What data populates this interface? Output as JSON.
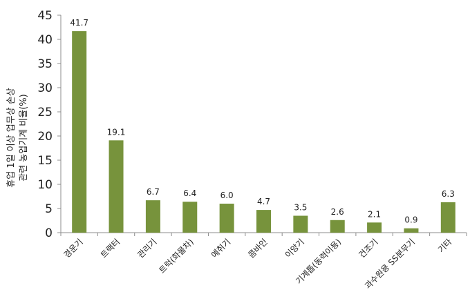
{
  "chart_data": {
    "type": "bar",
    "ylabel_lines": [
      "휴업 1일 이상 업무상 손상",
      "관련 농업기계 비율(%)"
    ],
    "categories": [
      "경운기",
      "트랙터",
      "관리기",
      "트럭(화물차)",
      "예취기",
      "콤바인",
      "이앙기",
      "기계톱(동력이용)",
      "건조기",
      "과수원용 SS분무기",
      "기타"
    ],
    "values": [
      41.7,
      19.1,
      6.7,
      6.4,
      6.0,
      4.7,
      3.5,
      2.6,
      2.1,
      0.9,
      6.3
    ],
    "value_labels": [
      "41.7",
      "19.1",
      "6.7",
      "6.4",
      "6.0",
      "4.7",
      "3.5",
      "2.6",
      "2.1",
      "0.9",
      "6.3"
    ],
    "ylim": [
      0,
      45
    ],
    "yticks": [
      "0",
      "5",
      "10",
      "15",
      "20",
      "25",
      "30",
      "35",
      "40",
      "45"
    ],
    "grid": false,
    "legend": "none",
    "bar_color": "#77933c"
  }
}
